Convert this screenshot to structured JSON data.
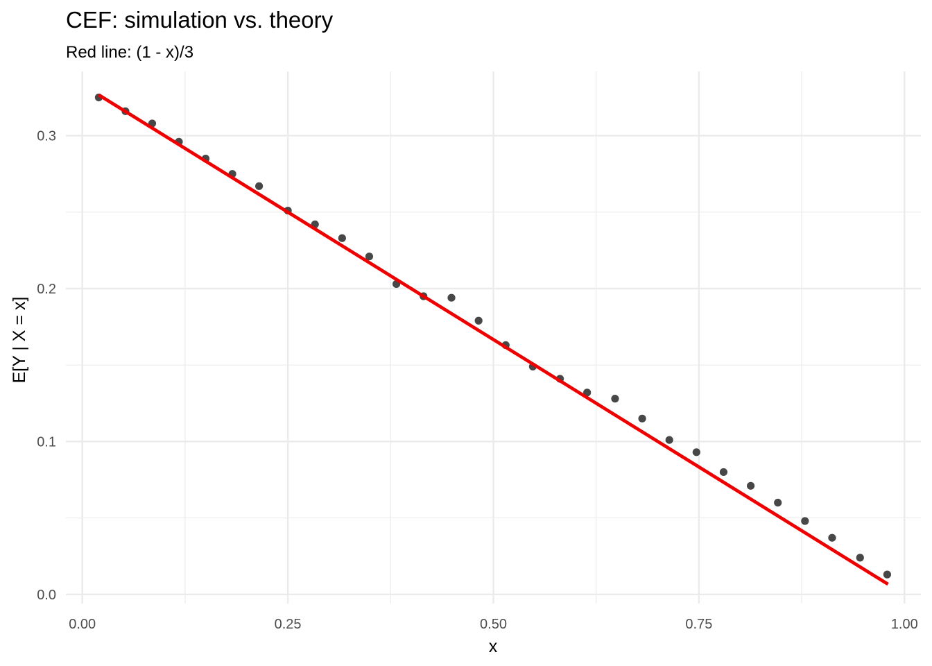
{
  "chart_data": {
    "type": "scatter",
    "title": "CEF: simulation vs. theory",
    "subtitle": "Red line: (1 - x)/3",
    "xlabel": "x",
    "ylabel": "E[Y | X = x]",
    "xlim": [
      -0.02,
      1.02
    ],
    "ylim": [
      -0.006,
      0.342
    ],
    "x_ticks": [
      0.0,
      0.25,
      0.5,
      0.75,
      1.0
    ],
    "x_tick_labels": [
      "0.00",
      "0.25",
      "0.50",
      "0.75",
      "1.00"
    ],
    "y_ticks": [
      0.0,
      0.1,
      0.2,
      0.3
    ],
    "y_tick_labels": [
      "0.0",
      "0.1",
      "0.2",
      "0.3"
    ],
    "grid": true,
    "legend": "none",
    "colors": {
      "points": "#333333",
      "line": "#ee0000",
      "grid": "#ebebeb"
    },
    "points": {
      "x": [
        0.02,
        0.0525,
        0.085,
        0.1175,
        0.15,
        0.1825,
        0.215,
        0.25,
        0.283,
        0.316,
        0.349,
        0.382,
        0.415,
        0.449,
        0.482,
        0.515,
        0.548,
        0.581,
        0.614,
        0.648,
        0.681,
        0.714,
        0.747,
        0.78,
        0.813,
        0.846,
        0.879,
        0.912,
        0.946,
        0.979
      ],
      "y": [
        0.325,
        0.316,
        0.308,
        0.296,
        0.285,
        0.275,
        0.267,
        0.251,
        0.242,
        0.233,
        0.221,
        0.203,
        0.195,
        0.194,
        0.179,
        0.163,
        0.149,
        0.141,
        0.132,
        0.128,
        0.115,
        0.101,
        0.093,
        0.08,
        0.071,
        0.06,
        0.048,
        0.037,
        0.024,
        0.013
      ]
    },
    "line": {
      "x": [
        0.02,
        0.98
      ],
      "y": [
        0.32667,
        0.00667
      ]
    }
  }
}
